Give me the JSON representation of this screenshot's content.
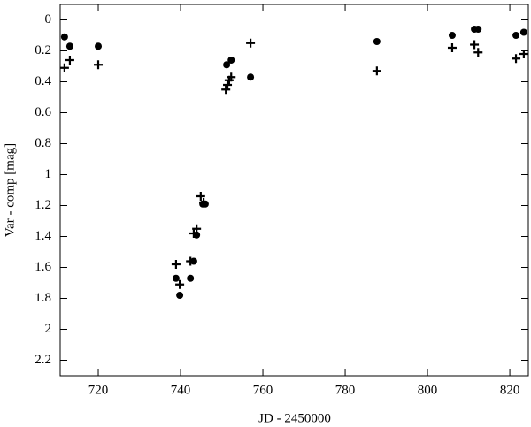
{
  "chart_data": {
    "type": "scatter",
    "xlabel": "JD - 2450000",
    "ylabel": "Var - comp [mag]",
    "xlim": [
      710.75,
      824.5
    ],
    "xticks": [
      720,
      740,
      760,
      780,
      800,
      820
    ],
    "ylim": [
      -0.1,
      2.3
    ],
    "yticks": [
      0,
      0.2,
      0.4,
      0.6,
      0.8,
      1,
      1.2,
      1.4,
      1.6,
      1.8,
      2,
      2.2
    ],
    "y_inverted": true,
    "series": [
      {
        "marker": "circle",
        "color": "#000000",
        "x": [
          711.8,
          713.1,
          720,
          738.9,
          739.8,
          742.4,
          743.2,
          743.9,
          745.4,
          746.0,
          751.2,
          752.3,
          757.0,
          787.7,
          806.0,
          811.4,
          812.3,
          821.5,
          823.4
        ],
        "values": [
          0.11,
          0.17,
          0.17,
          1.67,
          1.78,
          1.67,
          1.56,
          1.39,
          1.19,
          1.19,
          0.29,
          0.26,
          0.37,
          0.14,
          0.1,
          0.06,
          0.06,
          0.1,
          0.08
        ]
      },
      {
        "marker": "plus",
        "color": "#000000",
        "x": [
          711.8,
          713.1,
          720,
          738.9,
          739.8,
          742.4,
          743.2,
          743.9,
          744.9,
          745.6,
          751.0,
          751.4,
          751.8,
          752.3,
          757.0,
          787.7,
          806.0,
          811.4,
          812.3,
          821.5,
          823.4
        ],
        "values": [
          0.31,
          0.26,
          0.29,
          1.58,
          1.71,
          1.56,
          1.38,
          1.35,
          1.14,
          1.18,
          0.45,
          0.42,
          0.39,
          0.37,
          0.15,
          0.33,
          0.18,
          0.16,
          0.21,
          0.25,
          0.22
        ]
      }
    ]
  }
}
